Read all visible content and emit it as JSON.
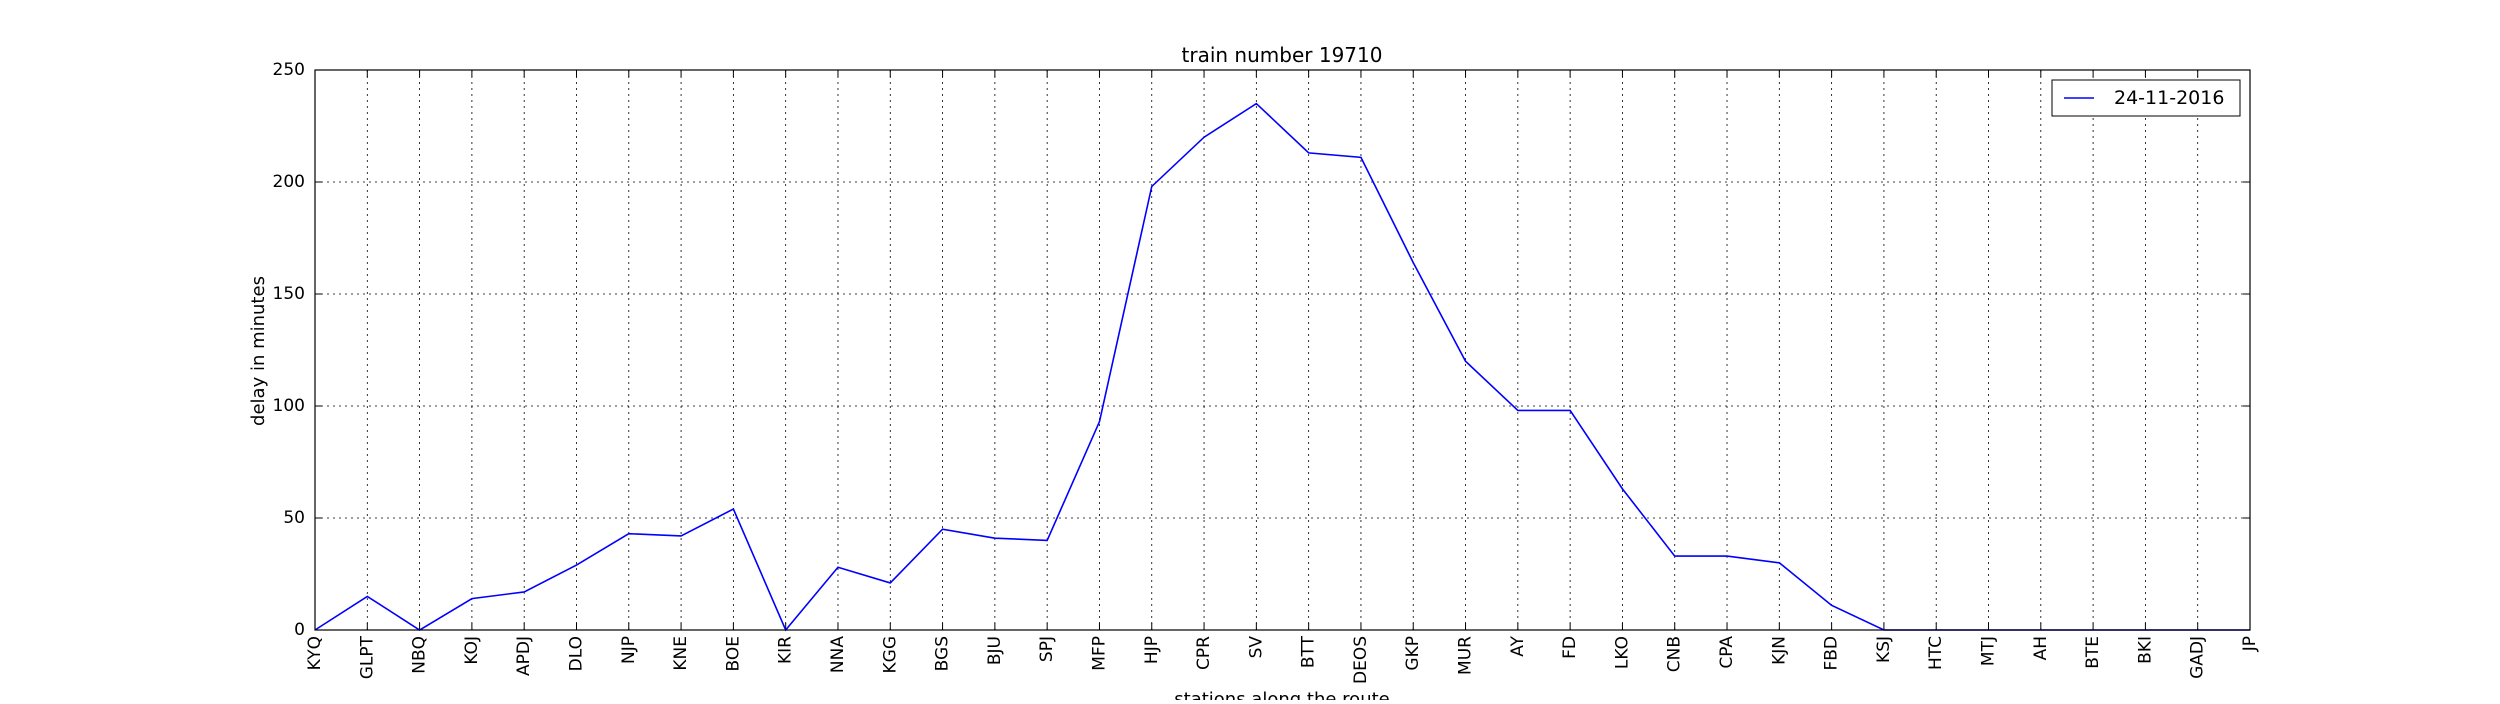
{
  "chart_data": {
    "type": "line",
    "title": "train number 19710",
    "xlabel": "stations along the route",
    "ylabel": "delay in minutes",
    "ylim": [
      0,
      250
    ],
    "yticks": [
      0,
      50,
      100,
      150,
      200,
      250
    ],
    "grid": true,
    "legend_position": "top-right",
    "categories": [
      "KYQ",
      "GLPT",
      "NBQ",
      "KOJ",
      "APDJ",
      "DLO",
      "NJP",
      "KNE",
      "BOE",
      "KIR",
      "NNA",
      "KGG",
      "BGS",
      "BJU",
      "SPJ",
      "MFP",
      "HJP",
      "CPR",
      "SV",
      "BTT",
      "DEOS",
      "GKP",
      "MUR",
      "AY",
      "FD",
      "LKO",
      "CNB",
      "CPA",
      "KJN",
      "FBD",
      "KSJ",
      "HTC",
      "MTJ",
      "AH",
      "BTE",
      "BKI",
      "GADJ",
      "JP"
    ],
    "series": [
      {
        "name": "24-11-2016",
        "color": "#0000ff",
        "values": [
          0,
          15,
          0,
          14,
          17,
          29,
          43,
          42,
          54,
          0,
          28,
          21,
          45,
          41,
          40,
          93,
          198,
          220,
          235,
          213,
          211,
          164,
          120,
          98,
          98,
          63,
          33,
          33,
          30,
          11,
          0,
          0,
          0,
          0,
          0,
          0,
          0,
          0
        ]
      }
    ]
  }
}
